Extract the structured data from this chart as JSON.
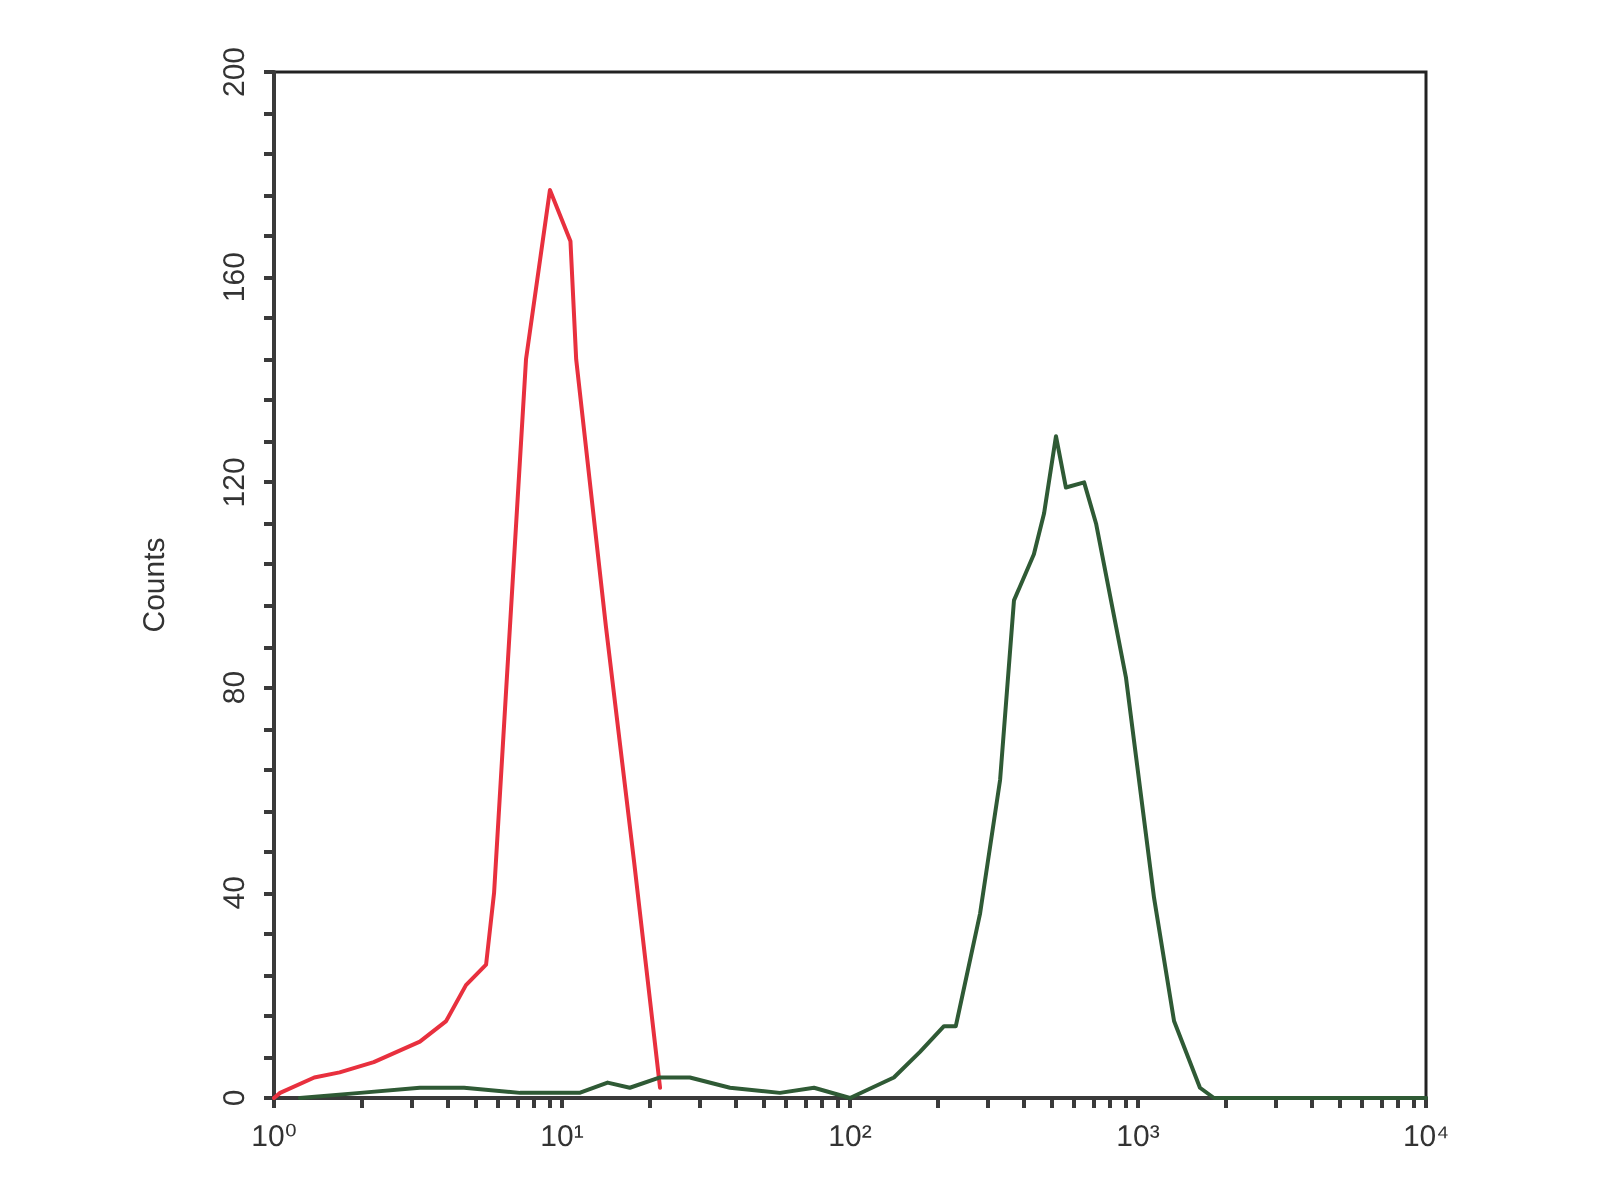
{
  "chart_data": {
    "type": "line",
    "ylabel": "Counts",
    "log": "x",
    "grid": false,
    "marker": "none",
    "line_style": "solid",
    "xlim": [
      1,
      10000
    ],
    "xticks": [
      {
        "value": 1,
        "label": "10⁰"
      },
      {
        "value": 2,
        "label": null
      },
      {
        "value": 3,
        "label": null
      },
      {
        "value": 4,
        "label": null
      },
      {
        "value": 5,
        "label": null
      },
      {
        "value": 6,
        "label": null
      },
      {
        "value": 7,
        "label": null
      },
      {
        "value": 8,
        "label": null
      },
      {
        "value": 9,
        "label": null
      },
      {
        "value": 10,
        "label": "10¹"
      },
      {
        "value": 20,
        "label": null
      },
      {
        "value": 30,
        "label": null
      },
      {
        "value": 40,
        "label": null
      },
      {
        "value": 50,
        "label": null
      },
      {
        "value": 60,
        "label": null
      },
      {
        "value": 70,
        "label": null
      },
      {
        "value": 80,
        "label": null
      },
      {
        "value": 90,
        "label": null
      },
      {
        "value": 100,
        "label": "10²"
      },
      {
        "value": 200,
        "label": null
      },
      {
        "value": 300,
        "label": null
      },
      {
        "value": 400,
        "label": null
      },
      {
        "value": 500,
        "label": null
      },
      {
        "value": 600,
        "label": null
      },
      {
        "value": 700,
        "label": null
      },
      {
        "value": 800,
        "label": null
      },
      {
        "value": 900,
        "label": null
      },
      {
        "value": 1000,
        "label": "10³"
      },
      {
        "value": 2000,
        "label": null
      },
      {
        "value": 3000,
        "label": null
      },
      {
        "value": 4000,
        "label": null
      },
      {
        "value": 5000,
        "label": null
      },
      {
        "value": 6000,
        "label": null
      },
      {
        "value": 7000,
        "label": null
      },
      {
        "value": 8000,
        "label": null
      },
      {
        "value": 9000,
        "label": null
      },
      {
        "value": 10000,
        "label": "10⁴"
      }
    ],
    "ylim": [
      0,
      200
    ],
    "yticks": [
      0,
      {
        "value": 8,
        "label": null
      },
      {
        "value": 16,
        "label": null
      },
      {
        "value": 24,
        "label": null
      },
      {
        "value": 32,
        "label": null
      },
      40,
      {
        "value": 48,
        "label": null
      },
      {
        "value": 56,
        "label": null
      },
      {
        "value": 64,
        "label": null
      },
      {
        "value": 72,
        "label": null
      },
      80,
      {
        "value": 88,
        "label": null
      },
      {
        "value": 96,
        "label": null
      },
      {
        "value": 104,
        "label": null
      },
      {
        "value": 112,
        "label": null
      },
      120,
      {
        "value": 128,
        "label": null
      },
      {
        "value": 136,
        "label": null
      },
      {
        "value": 144,
        "label": null
      },
      {
        "value": 152,
        "label": null
      },
      160,
      {
        "value": 168,
        "label": null
      },
      {
        "value": 176,
        "label": null
      },
      {
        "value": 184,
        "label": null
      },
      {
        "value": 192,
        "label": null
      },
      200
    ],
    "series": [
      {
        "color": "#e8303e",
        "x": [
          1,
          1.05,
          1.38,
          1.69,
          2.22,
          3.21,
          3.96,
          4.64,
          5.45,
          5.81,
          6.39,
          7.5,
          9.08,
          10.7,
          11.2,
          14.2,
          17.8,
          21.9
        ],
        "values": [
          0,
          1,
          4,
          5,
          7,
          11,
          15,
          22,
          26,
          40,
          79,
          144,
          177,
          167,
          144,
          92,
          46,
          2
        ]
      },
      {
        "color": "#2f5a35",
        "x": [
          1.23,
          1.99,
          3.21,
          4.57,
          7.15,
          11.5,
          14.4,
          17.2,
          21.9,
          27.8,
          38.3,
          57.1,
          75,
          100,
          142,
          175,
          212,
          233,
          283,
          332,
          371,
          435,
          472,
          519,
          562,
          650,
          715,
          908,
          1137,
          1334,
          1641,
          1836,
          3000,
          10000
        ],
        "values": [
          0,
          1,
          2,
          2,
          1,
          1,
          3,
          2,
          4,
          4,
          2,
          1,
          2,
          0,
          4,
          9,
          14,
          14,
          36,
          62,
          97,
          106,
          114,
          129,
          119,
          120,
          112,
          82,
          39,
          15,
          2,
          0,
          0,
          0
        ]
      }
    ]
  }
}
